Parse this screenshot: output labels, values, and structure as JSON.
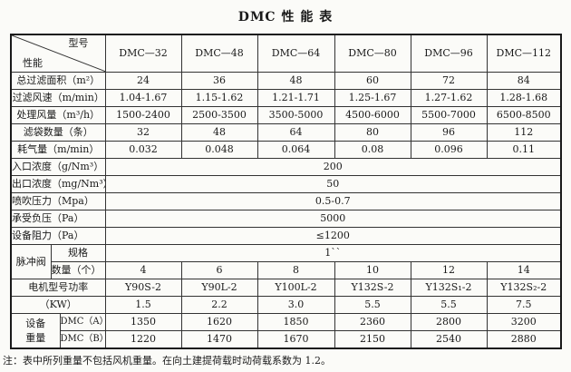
{
  "title": "DMC 性 能 表",
  "header": {
    "corner_top": "型号",
    "corner_bottom": "性能",
    "models": [
      "DMC—32",
      "DMC—48",
      "DMC—64",
      "DMC—80",
      "DMC—96",
      "DMC—112"
    ]
  },
  "rows": [
    {
      "label": "总过滤面积（m²）",
      "values": [
        "24",
        "36",
        "48",
        "60",
        "72",
        "84"
      ]
    },
    {
      "label": "过滤风速（m/min）",
      "values": [
        "1.04-1.67",
        "1.15-1.62",
        "1.21-1.71",
        "1.25-1.67",
        "1.27-1.62",
        "1.28-1.68"
      ]
    },
    {
      "label": "处理风量（m³/h）",
      "values": [
        "1500-2400",
        "2500-3500",
        "3500-5000",
        "4500-6000",
        "5500-7000",
        "6500-8500"
      ]
    },
    {
      "label": "滤袋数量（条）",
      "values": [
        "32",
        "48",
        "64",
        "80",
        "96",
        "112"
      ]
    },
    {
      "label": "耗气量（m/min）",
      "values": [
        "0.032",
        "0.048",
        "0.064",
        "0.08",
        "0.096",
        "0.11"
      ]
    }
  ],
  "shared_rows": [
    {
      "label": "入口浓度（g/Nm³）",
      "value": "200"
    },
    {
      "label": "出口浓度（mg/Nm³）",
      "value": "50"
    },
    {
      "label": "喷吹压力（Mpa）",
      "value": "0.5-0.7"
    },
    {
      "label": "承受负压（Pa）",
      "value": "5000"
    },
    {
      "label": "设备阻力（Pa）",
      "value": "≤1200"
    }
  ],
  "pulse_valve": {
    "label": "脉冲阀",
    "spec_label": "规格",
    "spec_value": "1``",
    "qty_label": "数量（个）",
    "qty_values": [
      "4",
      "6",
      "8",
      "10",
      "12",
      "14"
    ]
  },
  "motor": {
    "label": "电机型号功率",
    "models": [
      "Y90S-2",
      "Y90L-2",
      "Y100L-2",
      "Y132S-2",
      "Y132S₁-2",
      "Y132S₂-2"
    ],
    "kw_label": "（KW）",
    "kw_values": [
      "1.5",
      "2.2",
      "3.0",
      "5.5",
      "5.5",
      "7.5"
    ]
  },
  "weight": {
    "label_line1": "设备",
    "label_line2": "重量",
    "a_label": "DMC（A）",
    "a_values": [
      "1350",
      "1620",
      "1850",
      "2360",
      "2800",
      "3200"
    ],
    "b_label": "DMC（B）",
    "b_values": [
      "1220",
      "1470",
      "1670",
      "2150",
      "2540",
      "2880"
    ]
  },
  "note": "注：表中所列重量不包括风机重量。在向土建提荷载时动荷载系数为 1.2。"
}
